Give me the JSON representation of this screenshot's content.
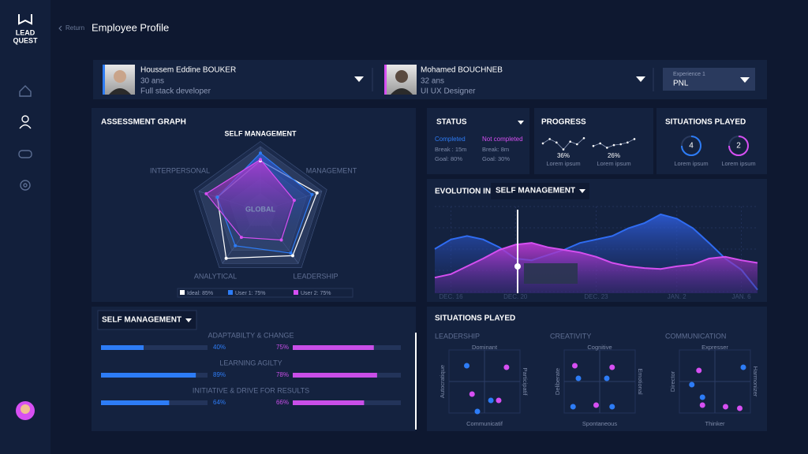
{
  "sidebar": {
    "logo": [
      "LEAD",
      "QUEST"
    ]
  },
  "header": {
    "back": "Return",
    "title": "Employee Profile"
  },
  "profiles": [
    {
      "name": "Houssem Eddine BOUKER",
      "age": "30 ans",
      "role": "Full stack developer",
      "color": "#2d7cf6"
    },
    {
      "name": "Mohamed BOUCHNEB",
      "age": "32 ans",
      "role": "UI UX Designer",
      "color": "#d64ff2"
    }
  ],
  "experience": {
    "label": "Experience 1",
    "value": "PNL"
  },
  "assessment": {
    "type": "radar",
    "title": "ASSESSMENT GRAPH",
    "center_label": "GLOBAL",
    "axes": [
      "SELF MANAGEMENT",
      "MANAGEMENT",
      "LEADERSHIP",
      "ANALYTICAL",
      "INTERPERSONAL"
    ],
    "rlim": [
      0,
      100
    ],
    "series": [
      {
        "name": "Ideal: 85%",
        "color": "#ffffff",
        "values": [
          78,
          92,
          85,
          90,
          70
        ]
      },
      {
        "name": "User 1: 75%",
        "color": "#2d7cf6",
        "values": [
          90,
          84,
          80,
          66,
          70
        ]
      },
      {
        "name": "User 2: 75%",
        "color": "#d64ff2",
        "values": [
          80,
          55,
          55,
          50,
          88
        ]
      }
    ]
  },
  "skills": {
    "selector": "SELF MANAGEMENT",
    "colors": [
      "#2d7cf6",
      "#c94ee8"
    ],
    "items": [
      {
        "label": "ADAPTABILTY & CHANGE",
        "values": [
          40,
          75
        ],
        "value_labels": [
          "40%",
          "75%"
        ]
      },
      {
        "label": "LEARNING AGILTY",
        "values": [
          89,
          78
        ],
        "value_labels": [
          "89%",
          "78%"
        ]
      },
      {
        "label": "INITIATIVE & DRIVE FOR RESULTS",
        "values": [
          64,
          66
        ],
        "value_labels": [
          "64%",
          "66%"
        ]
      }
    ]
  },
  "status": {
    "title": "STATUS",
    "columns": [
      {
        "label": "Completed",
        "color": "#2d7cf6",
        "lines": [
          "Break : 15m",
          "Goal: 80%"
        ]
      },
      {
        "label": "Not completed",
        "color": "#d64ff2",
        "lines": [
          "Break: 8m",
          "Goal: 30%"
        ]
      }
    ]
  },
  "progress": {
    "title": "PROGRESS",
    "items": [
      {
        "value": 36,
        "value_label": "36%",
        "caption": "Lorem ipsum",
        "trend": [
          55,
          80,
          60,
          20,
          65,
          50,
          85
        ]
      },
      {
        "value": 26,
        "value_label": "26%",
        "caption": "Lorem ipsum",
        "trend": [
          40,
          55,
          30,
          45,
          50,
          60,
          80
        ]
      }
    ]
  },
  "situations_count": {
    "title": "SITUATIONS PLAYED",
    "items": [
      {
        "value": 4,
        "caption": "Lorem ipsum",
        "color": "#2d7cf6"
      },
      {
        "value": 2,
        "caption": "Lorem ipsum",
        "color": "#d64ff2"
      }
    ]
  },
  "evolution": {
    "type": "area",
    "title": "EVOLUTION IN",
    "selector": "SELF MANAGEMENT",
    "categories": [
      null,
      "DEC. 16",
      null,
      null,
      null,
      "DEC. 20",
      null,
      null,
      null,
      null,
      "DEC. 23",
      null,
      null,
      null,
      null,
      "JAN. 2",
      null,
      null,
      null,
      "JAN. 6",
      null
    ],
    "ylim": [
      0,
      100
    ],
    "series": [
      {
        "color": "#2f6cf2",
        "values": [
          51,
          62,
          66,
          62,
          53,
          40,
          38,
          44,
          50,
          58,
          62,
          66,
          75,
          81,
          91,
          86,
          75,
          58,
          40,
          27,
          4
        ]
      },
      {
        "color": "#d54ff0",
        "values": [
          18,
          22,
          31,
          40,
          50,
          56,
          58,
          53,
          50,
          47,
          42,
          35,
          31,
          29,
          28,
          31,
          33,
          40,
          42,
          38,
          35
        ]
      }
    ]
  },
  "situations": {
    "type": "scatter",
    "title": "SITUATIONS PLAYED",
    "xlim": [
      -1,
      1
    ],
    "ylim": [
      -1,
      1
    ],
    "panels": [
      {
        "title": "LEADERSHIP",
        "top": "Dominant",
        "bottom": "Communicatif",
        "left": "Autocratique",
        "right": "Participatif",
        "series": [
          {
            "color": "#2d7cf6",
            "x": [
              -0.5,
              0.18,
              -0.2
            ],
            "y": [
              0.5,
              -0.6,
              -0.95
            ]
          },
          {
            "color": "#d64ff2",
            "x": [
              0.62,
              -0.35,
              0.4
            ],
            "y": [
              0.45,
              -0.4,
              -0.6
            ]
          }
        ]
      },
      {
        "title": "CREATIVITY",
        "top": "Cognitive",
        "bottom": "Spontaneous",
        "left": "Deliberate",
        "right": "Emotional",
        "series": [
          {
            "color": "#2d7cf6",
            "x": [
              -0.6,
              -0.75,
              0.35,
              0.2
            ],
            "y": [
              0.1,
              -0.8,
              -0.8,
              0.1
            ]
          },
          {
            "color": "#d64ff2",
            "x": [
              -0.7,
              0.35,
              -0.1
            ],
            "y": [
              0.5,
              0.45,
              -0.75
            ]
          }
        ]
      },
      {
        "title": "COMMUNICATION",
        "top": "Expresser",
        "bottom": "Thinker",
        "left": "Director",
        "right": "Harmonizer",
        "series": [
          {
            "color": "#2d7cf6",
            "x": [
              -0.65,
              0.8,
              -0.35
            ],
            "y": [
              -0.1,
              0.45,
              -0.5
            ]
          },
          {
            "color": "#d64ff2",
            "x": [
              -0.45,
              0.3,
              -0.35,
              0.7
            ],
            "y": [
              0.35,
              -0.8,
              -0.75,
              -0.85
            ]
          }
        ]
      }
    ]
  }
}
